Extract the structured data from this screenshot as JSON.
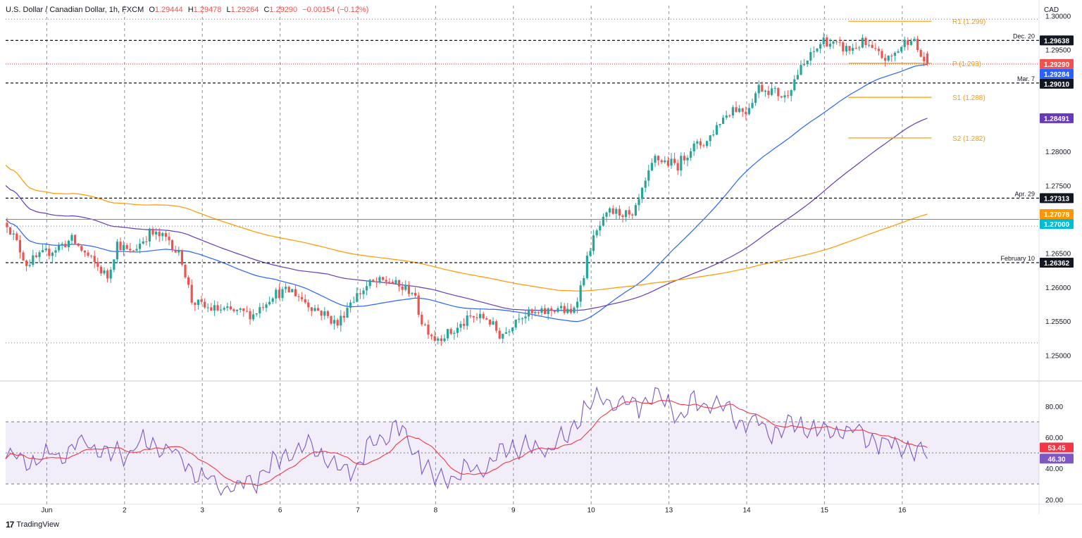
{
  "header": {
    "symbol": "U.S. Dollar / Canadian Dollar, 1h, FXCM",
    "open_label": "O",
    "open": "1.29444",
    "high_label": "H",
    "high": "1.29478",
    "low_label": "L",
    "low": "1.29264",
    "close_label": "C",
    "close": "1.29290",
    "change": "−0.00154 (−0.12%)"
  },
  "branding": {
    "logo_glyph": "17",
    "name": "TradingView"
  },
  "colors": {
    "up": "#26a69a",
    "down": "#ef5350",
    "sma20": "#2962ff",
    "sma50": "#673ab7",
    "sma200": "#ff9800",
    "pivot": "#ff9800",
    "rsi": "#7e57c2",
    "rsi_ma": "#f23645",
    "hline": "#131722",
    "level_1270": "#00bcd4",
    "grid": "#e0e3eb"
  },
  "chart_data": [
    {
      "type": "candlestick",
      "title": "U.S. Dollar / Canadian Dollar, 1h, FXCM",
      "currency_label": "CAD",
      "y_ticks": [
        "1.25000",
        "1.25500",
        "1.26000",
        "1.26500",
        "1.27000",
        "1.27500",
        "1.28000",
        "1.28500",
        "1.29000",
        "1.29500",
        "1.30000"
      ],
      "ylim": [
        1.2465,
        1.3015
      ],
      "x_ticks": [
        {
          "label": "Jun",
          "bar": 24
        },
        {
          "label": "2",
          "bar": 48
        },
        {
          "label": "3",
          "bar": 72
        },
        {
          "label": "6",
          "bar": 96
        },
        {
          "label": "7",
          "bar": 120
        },
        {
          "label": "8",
          "bar": 144
        },
        {
          "label": "9",
          "bar": 168
        },
        {
          "label": "10",
          "bar": 192
        },
        {
          "label": "13",
          "bar": 216
        },
        {
          "label": "14",
          "bar": 240
        },
        {
          "label": "15",
          "bar": 264
        },
        {
          "label": "16",
          "bar": 288
        }
      ],
      "bar_count": 308,
      "anchors": [
        [
          0,
          1.2695
        ],
        [
          6,
          1.2635
        ],
        [
          12,
          1.265
        ],
        [
          20,
          1.267
        ],
        [
          26,
          1.264
        ],
        [
          31,
          1.2615
        ],
        [
          34,
          1.2665
        ],
        [
          38,
          1.265
        ],
        [
          44,
          1.268
        ],
        [
          50,
          1.267
        ],
        [
          54,
          1.264
        ],
        [
          57,
          1.258
        ],
        [
          61,
          1.257
        ],
        [
          68,
          1.2565
        ],
        [
          76,
          1.256
        ],
        [
          82,
          1.259
        ],
        [
          88,
          1.2595
        ],
        [
          93,
          1.2575
        ],
        [
          98,
          1.256
        ],
        [
          102,
          1.2545
        ],
        [
          106,
          1.258
        ],
        [
          112,
          1.2605
        ],
        [
          118,
          1.261
        ],
        [
          121,
          1.26
        ],
        [
          125,
          1.2595
        ],
        [
          128,
          1.255
        ],
        [
          132,
          1.2525
        ],
        [
          138,
          1.2535
        ],
        [
          143,
          1.2555
        ],
        [
          148,
          1.2555
        ],
        [
          152,
          1.253
        ],
        [
          154,
          1.2535
        ],
        [
          158,
          1.256
        ],
        [
          164,
          1.256
        ],
        [
          170,
          1.257
        ],
        [
          174,
          1.256
        ],
        [
          177,
          1.26
        ],
        [
          180,
          1.266
        ],
        [
          183,
          1.269
        ],
        [
          186,
          1.271
        ],
        [
          190,
          1.271
        ],
        [
          193,
          1.27
        ],
        [
          196,
          1.274
        ],
        [
          200,
          1.279
        ],
        [
          203,
          1.2785
        ],
        [
          207,
          1.278
        ],
        [
          211,
          1.2805
        ],
        [
          216,
          1.2815
        ],
        [
          220,
          1.2845
        ],
        [
          224,
          1.2865
        ],
        [
          228,
          1.286
        ],
        [
          232,
          1.2895
        ],
        [
          236,
          1.289
        ],
        [
          240,
          1.288
        ],
        [
          244,
          1.2915
        ],
        [
          248,
          1.294
        ],
        [
          252,
          1.2965
        ],
        [
          256,
          1.2955
        ],
        [
          260,
          1.295
        ],
        [
          264,
          1.296
        ],
        [
          268,
          1.2945
        ],
        [
          272,
          1.2935
        ],
        [
          276,
          1.2955
        ],
        [
          279,
          1.297
        ],
        [
          282,
          1.294
        ],
        [
          284,
          1.2929
        ]
      ],
      "last_bar": {
        "open": 1.29444,
        "high": 1.29478,
        "low": 1.29264,
        "close": 1.2929
      },
      "moving_averages": [
        {
          "label": "1.29284",
          "color": "#2962ff",
          "start": 1.27,
          "end": 1.29284
        },
        {
          "label": "1.28491",
          "color": "#673ab7",
          "start": 1.275,
          "end": 1.28491
        },
        {
          "label": "1.27078",
          "color": "#ff9800",
          "start": 1.278,
          "end": 1.27078
        }
      ],
      "horizontal_levels": [
        {
          "price": 1.29638,
          "label": "1.29638",
          "note": "Dec. 20",
          "style": "dashed",
          "color": "#131722"
        },
        {
          "price": 1.2901,
          "label": "1.29010",
          "note": "Mar. 7",
          "style": "dashed",
          "color": "#131722"
        },
        {
          "price": 1.27313,
          "label": "1.27313",
          "note": "Apr. 29",
          "style": "dashed",
          "color": "#131722"
        },
        {
          "price": 1.27,
          "label": "1.27000",
          "note": "",
          "style": "solid",
          "color": "#00bcd4"
        },
        {
          "price": 1.26362,
          "label": "1.26362",
          "note": "February 10",
          "style": "dashed",
          "color": "#131722"
        },
        {
          "price": 1.2929,
          "label": "1.29290",
          "note": "",
          "style": "dotted",
          "color": "#ef5350"
        }
      ],
      "pivots": [
        {
          "label": "R1 (1.299)",
          "price": 1.2992
        },
        {
          "label": "P (1.293)",
          "price": 1.293
        },
        {
          "label": "S1 (1.288)",
          "price": 1.288
        },
        {
          "label": "S2 (1.282)",
          "price": 1.282
        }
      ],
      "pivot_start_bar": 264
    },
    {
      "type": "line",
      "title": "",
      "y_ticks": [
        "20.00",
        "40.00",
        "60.00",
        "80.00"
      ],
      "ylim": [
        17,
        94
      ],
      "band": [
        30,
        70
      ],
      "midline": 50,
      "anchors": [
        [
          0,
          47
        ],
        [
          8,
          45
        ],
        [
          16,
          50
        ],
        [
          24,
          57
        ],
        [
          32,
          47
        ],
        [
          40,
          55
        ],
        [
          48,
          56
        ],
        [
          56,
          40
        ],
        [
          64,
          30
        ],
        [
          72,
          28
        ],
        [
          80,
          38
        ],
        [
          88,
          53
        ],
        [
          96,
          52
        ],
        [
          104,
          36
        ],
        [
          112,
          54
        ],
        [
          120,
          67
        ],
        [
          126,
          52
        ],
        [
          132,
          33
        ],
        [
          140,
          38
        ],
        [
          148,
          40
        ],
        [
          156,
          54
        ],
        [
          164,
          52
        ],
        [
          172,
          57
        ],
        [
          178,
          80
        ],
        [
          184,
          84
        ],
        [
          190,
          80
        ],
        [
          196,
          81
        ],
        [
          200,
          87
        ],
        [
          206,
          76
        ],
        [
          212,
          80
        ],
        [
          218,
          82
        ],
        [
          222,
          74
        ],
        [
          228,
          72
        ],
        [
          234,
          66
        ],
        [
          240,
          64
        ],
        [
          246,
          70
        ],
        [
          252,
          64
        ],
        [
          258,
          63
        ],
        [
          264,
          63
        ],
        [
          270,
          55
        ],
        [
          276,
          55
        ],
        [
          284,
          46
        ]
      ],
      "series": [
        {
          "name": "RSI",
          "label": "46.30",
          "color": "#7e57c2"
        },
        {
          "name": "RSI MA",
          "label": "53.45",
          "color": "#f23645"
        }
      ]
    }
  ]
}
